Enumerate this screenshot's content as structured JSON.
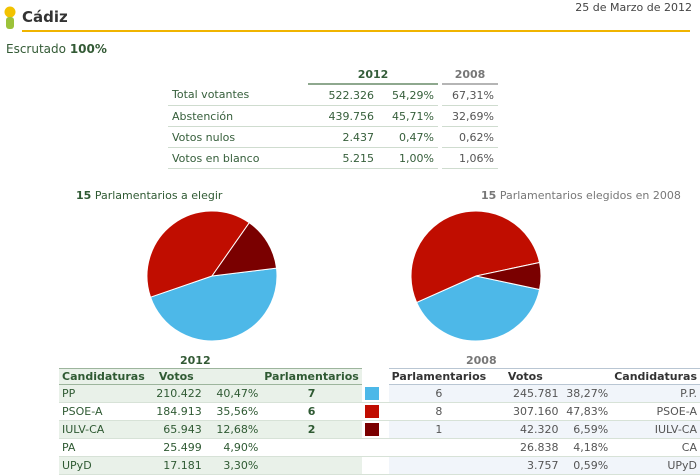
{
  "header": {
    "title": "Cádiz",
    "date": "25 de Marzo de 2012"
  },
  "escrutado": {
    "label": "Escrutado",
    "value": "100%"
  },
  "summary": {
    "year_2012": "2012",
    "year_2008": "2008",
    "rows": [
      {
        "label": "Total votantes",
        "votes": "522.326",
        "pct": "54,29%",
        "pct2008": "67,31%"
      },
      {
        "label": "Abstención",
        "votes": "439.756",
        "pct": "45,71%",
        "pct2008": "32,69%"
      },
      {
        "label": "Votos nulos",
        "votes": "2.437",
        "pct": "0,47%",
        "pct2008": "0,62%"
      },
      {
        "label": "Votos en blanco",
        "votes": "5.215",
        "pct": "1,00%",
        "pct2008": "1,06%"
      }
    ]
  },
  "seats": {
    "left_count": "15",
    "left_label": "Parlamentarios a elegir",
    "right_count": "15",
    "right_label": "Parlamentarios elegidos en 2008"
  },
  "colors": {
    "pp": "#4db8e8",
    "psoe": "#c00d00",
    "iulv": "#7a0000"
  },
  "chart_data": [
    {
      "type": "pie",
      "slices": [
        {
          "party": "PP",
          "value": 7,
          "color": "#4db8e8"
        },
        {
          "party": "PSOE-A",
          "value": 6,
          "color": "#c00d00"
        },
        {
          "party": "IULV-CA",
          "value": 2,
          "color": "#7a0000"
        }
      ]
    },
    {
      "type": "pie",
      "slices": [
        {
          "party": "P.P.",
          "value": 6,
          "color": "#4db8e8"
        },
        {
          "party": "PSOE-A",
          "value": 8,
          "color": "#c00d00"
        },
        {
          "party": "IULV-CA",
          "value": 1,
          "color": "#7a0000"
        }
      ]
    }
  ],
  "results": {
    "year_2012": "2012",
    "year_2008": "2008",
    "headers": {
      "candidaturas": "Candidaturas",
      "votos": "Votos",
      "parlamentarios": "Parlamentarios",
      "r_parlamentarios": "Parlamentarios",
      "r_votos": "Votos",
      "r_candidaturas": "Candidaturas"
    },
    "rows": [
      {
        "name": "PP",
        "votes": "210.422",
        "pct": "40,47%",
        "seats": "7",
        "color": "#4db8e8",
        "seats2008": "6",
        "votes2008": "245.781",
        "pct2008": "38,27%",
        "name2008": "P.P."
      },
      {
        "name": "PSOE-A",
        "votes": "184.913",
        "pct": "35,56%",
        "seats": "6",
        "color": "#c00d00",
        "seats2008": "8",
        "votes2008": "307.160",
        "pct2008": "47,83%",
        "name2008": "PSOE-A"
      },
      {
        "name": "IULV-CA",
        "votes": "65.943",
        "pct": "12,68%",
        "seats": "2",
        "color": "#7a0000",
        "seats2008": "1",
        "votes2008": "42.320",
        "pct2008": "6,59%",
        "name2008": "IULV-CA"
      },
      {
        "name": "PA",
        "votes": "25.499",
        "pct": "4,90%",
        "seats": "",
        "color": "",
        "seats2008": "",
        "votes2008": "26.838",
        "pct2008": "4,18%",
        "name2008": "CA"
      },
      {
        "name": "UPyD",
        "votes": "17.181",
        "pct": "3,30%",
        "seats": "",
        "color": "",
        "seats2008": "",
        "votes2008": "3.757",
        "pct2008": "0,59%",
        "name2008": "UPyD"
      }
    ]
  }
}
